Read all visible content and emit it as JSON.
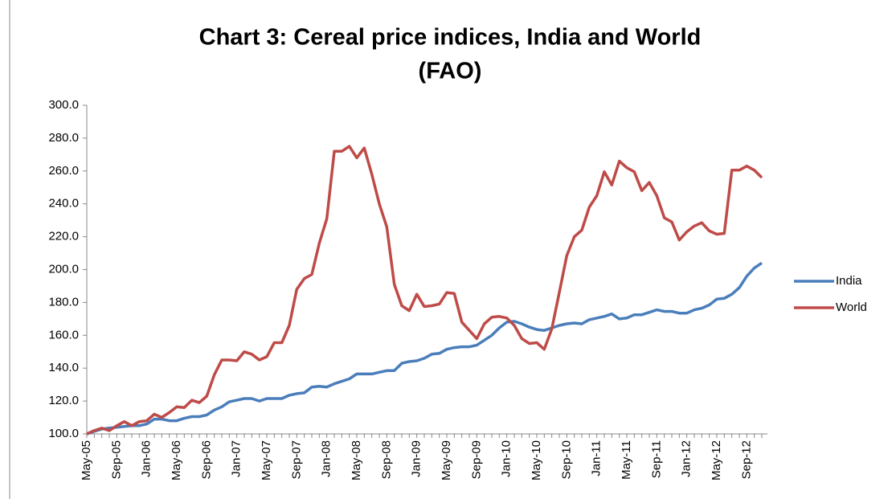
{
  "chart_data": {
    "type": "line",
    "title": [
      "Chart 3: Cereal price indices, India and World",
      "(FAO)"
    ],
    "categories": [
      "May-05",
      null,
      null,
      null,
      "Sep-05",
      null,
      null,
      null,
      "Jan-06",
      null,
      null,
      null,
      "May-06",
      null,
      null,
      null,
      "Sep-06",
      null,
      null,
      null,
      "Jan-07",
      null,
      null,
      null,
      "May-07",
      null,
      null,
      null,
      "Sep-07",
      null,
      null,
      null,
      "Jan-08",
      null,
      null,
      null,
      "May-08",
      null,
      null,
      null,
      "Sep-08",
      null,
      null,
      null,
      "Jan-09",
      null,
      null,
      null,
      "May-09",
      null,
      null,
      null,
      "Sep-09",
      null,
      null,
      null,
      "Jan-10",
      null,
      null,
      null,
      "May-10",
      null,
      null,
      null,
      "Sep-10",
      null,
      null,
      null,
      "Jan-11",
      null,
      null,
      null,
      "May-11",
      null,
      null,
      null,
      "Sep-11",
      null,
      null,
      null,
      "Jan-12",
      null,
      null,
      null,
      "May-12",
      null,
      null,
      null,
      "Sep-12",
      null,
      null
    ],
    "series": [
      {
        "name": "India",
        "color": "#4a7ebb",
        "values": [
          100,
          101.5,
          103,
          103.5,
          104,
          104.5,
          105,
          105,
          106,
          109,
          109,
          108,
          108,
          109.5,
          110.5,
          110.5,
          111.5,
          114.5,
          116.5,
          119.5,
          120.5,
          121.5,
          121.5,
          120,
          121.5,
          121.5,
          121.5,
          123.5,
          124.5,
          125,
          128.5,
          129,
          128.5,
          130.5,
          132,
          133.5,
          136.5,
          136.5,
          136.5,
          137.5,
          138.5,
          138.5,
          143,
          144,
          144.5,
          146,
          148.5,
          149,
          151.5,
          152.5,
          153,
          153,
          154,
          157,
          160,
          164.5,
          168,
          168.5,
          167,
          165,
          163.5,
          163,
          164.5,
          166,
          167,
          167.5,
          167,
          169.5,
          170.5,
          171.5,
          173,
          170,
          170.5,
          172.5,
          172.5,
          174,
          175.5,
          174.5,
          174.5,
          173.5,
          173.5,
          175.5,
          176.5,
          178.5,
          182,
          182.5,
          185,
          189,
          196,
          201,
          204
        ]
      },
      {
        "name": "World",
        "color": "#be4b48",
        "values": [
          100,
          102,
          103.5,
          102,
          105,
          107.5,
          105,
          107.5,
          108,
          112,
          110,
          113,
          116.5,
          116,
          120.5,
          119,
          123,
          136,
          145,
          145,
          144.5,
          150,
          148.5,
          145,
          147,
          155.5,
          155.5,
          166,
          188,
          194.5,
          197,
          216,
          231,
          272,
          272,
          275,
          268,
          274,
          258,
          240,
          226,
          191,
          178,
          175,
          185,
          177.5,
          178,
          179,
          186,
          185.5,
          168,
          163,
          158,
          167,
          171,
          171.5,
          170.5,
          166,
          158,
          155,
          155.5,
          151.5,
          164,
          186,
          208.5,
          220,
          224,
          238,
          245,
          259.5,
          251.5,
          266,
          262,
          259.5,
          248,
          253,
          245,
          231.5,
          229,
          218,
          223,
          226.5,
          228.5,
          223.5,
          221.5,
          222,
          260.5,
          260.5,
          263,
          260.5,
          256
        ]
      }
    ],
    "ylim": [
      100,
      300
    ],
    "yticks": [
      {
        "value": 100,
        "label": "100.0"
      },
      {
        "value": 120,
        "label": "120.0"
      },
      {
        "value": 140,
        "label": "140.0"
      },
      {
        "value": 160,
        "label": "160.0"
      },
      {
        "value": 180,
        "label": "180.0"
      },
      {
        "value": 200,
        "label": "200.0"
      },
      {
        "value": 220,
        "label": "220.0"
      },
      {
        "value": 240,
        "label": "240.0"
      },
      {
        "value": 260,
        "label": "260.0"
      },
      {
        "value": 280,
        "label": "280.0"
      },
      {
        "value": 300,
        "label": "300.0"
      }
    ],
    "legend": "right"
  }
}
